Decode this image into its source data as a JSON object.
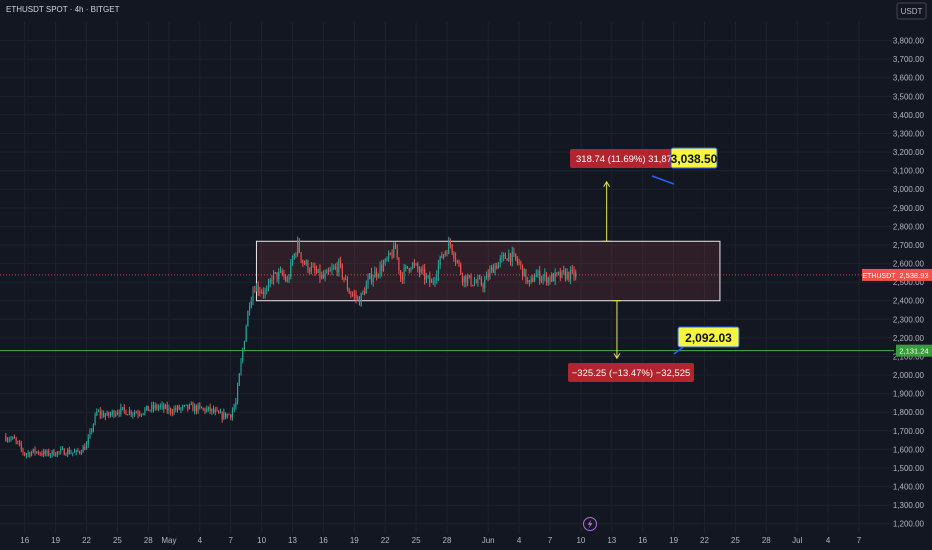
{
  "header": {
    "symbol_title": "ETHUSDT SPOT · 4h · BITGET",
    "currency_button": "USDT"
  },
  "bottom": {
    "flash_icon": "lightning-icon"
  },
  "colors": {
    "background": "#131722",
    "grid": "#1e222d",
    "up": "#26a69a",
    "down": "#ef5350",
    "box_fill": "rgba(239,83,80,0.12)",
    "support_line": "#4caf50",
    "target_fill": "#f5f542",
    "info_fill": "#b2242e",
    "arrow": "#e6e64a",
    "text": "#b2b5be"
  },
  "chart_data": {
    "type": "candlestick",
    "title": "ETHUSDT SPOT · 4h · BITGET",
    "ylim": [
      1150,
      3900
    ],
    "y_ticks": [
      1200,
      1300,
      1400,
      1500,
      1600,
      1700,
      1800,
      1900,
      2000,
      2100,
      2200,
      2300,
      2400,
      2500,
      2600,
      2700,
      2800,
      2900,
      3000,
      3100,
      3200,
      3300,
      3400,
      3500,
      3600,
      3700,
      3800
    ],
    "y_tick_labels": [
      "1,200.00",
      "1,300.00",
      "1,400.00",
      "1,500.00",
      "1,600.00",
      "1,700.00",
      "1,800.00",
      "1,900.00",
      "2,000.00",
      "2,100.00",
      "2,200.00",
      "2,300.00",
      "2,400.00",
      "2,500.00",
      "2,600.00",
      "2,700.00",
      "2,800.00",
      "2,900.00",
      "3,000.00",
      "3,100.00",
      "3,200.00",
      "3,300.00",
      "3,400.00",
      "3,500.00",
      "3,600.00",
      "3,700.00",
      "3,800.00"
    ],
    "x_tick_labels": [
      "16",
      "19",
      "22",
      "25",
      "28",
      "May",
      "4",
      "7",
      "10",
      "13",
      "16",
      "19",
      "22",
      "25",
      "28",
      "Jun",
      "4",
      "7",
      "10",
      "13",
      "16",
      "19",
      "22",
      "25",
      "28",
      "Jul",
      "4",
      "7"
    ],
    "x_tick_days": [
      -14,
      -11,
      -8,
      -5,
      -2,
      0,
      3,
      6,
      9,
      12,
      15,
      18,
      21,
      24,
      27,
      31,
      34,
      37,
      40,
      43,
      46,
      49,
      52,
      55,
      58,
      61,
      64,
      67
    ],
    "x_range_days": [
      -16.4,
      70.4
    ],
    "close_anchors": [
      [
        -16,
        1670
      ],
      [
        -15,
        1650
      ],
      [
        -14,
        1575
      ],
      [
        -13,
        1590
      ],
      [
        -12,
        1575
      ],
      [
        -10,
        1590
      ],
      [
        -9,
        1580
      ],
      [
        -8,
        1620
      ],
      [
        -7,
        1800
      ],
      [
        -6,
        1780
      ],
      [
        -5,
        1810
      ],
      [
        -3,
        1800
      ],
      [
        -1,
        1830
      ],
      [
        0,
        1810
      ],
      [
        2,
        1825
      ],
      [
        4,
        1810
      ],
      [
        5,
        1780
      ],
      [
        6,
        1790
      ],
      [
        6.5,
        1850
      ],
      [
        7.2,
        2150
      ],
      [
        7.8,
        2390
      ],
      [
        8.3,
        2480
      ],
      [
        9.5,
        2440
      ],
      [
        10,
        2530
      ],
      [
        11,
        2540
      ],
      [
        11.5,
        2500
      ],
      [
        12,
        2620
      ],
      [
        12.5,
        2700
      ],
      [
        13,
        2610
      ],
      [
        14,
        2560
      ],
      [
        15,
        2520
      ],
      [
        16.5,
        2590
      ],
      [
        17.5,
        2450
      ],
      [
        18.5,
        2400
      ],
      [
        19.5,
        2520
      ],
      [
        21,
        2600
      ],
      [
        22,
        2680
      ],
      [
        22.5,
        2530
      ],
      [
        23.5,
        2600
      ],
      [
        24.5,
        2550
      ],
      [
        25.5,
        2490
      ],
      [
        26.5,
        2640
      ],
      [
        27.3,
        2710
      ],
      [
        27.8,
        2640
      ],
      [
        28.5,
        2530
      ],
      [
        29.5,
        2500
      ],
      [
        30.5,
        2490
      ],
      [
        31.5,
        2580
      ],
      [
        33,
        2650
      ],
      [
        34,
        2600
      ],
      [
        35,
        2480
      ],
      [
        35.5,
        2540
      ],
      [
        37,
        2520
      ],
      [
        38.5,
        2540
      ],
      [
        39.5,
        2538.93
      ]
    ],
    "last_price": 2538.93,
    "last_price_label": "2,538.93",
    "last_price_tag": "ETHUSDT",
    "support_level": 2131.24,
    "support_label": "2,131.24",
    "range_box": {
      "x0_day": 8.5,
      "x1_day": 53.5,
      "y_top": 2720,
      "y_bottom": 2400
    },
    "upper_target": {
      "value": 3038.5,
      "label": "3,038.50",
      "info": "318.74 (11.69%) 31,874",
      "arrow_day": 42.5,
      "arrow_from": 2720,
      "arrow_to": 3040
    },
    "lower_target": {
      "value": 2092.03,
      "label": "2,092.03",
      "info": "−325.25 (−13.47%) −32,525",
      "arrow_day": 43.5,
      "arrow_from": 2400,
      "arrow_to": 2090
    }
  }
}
